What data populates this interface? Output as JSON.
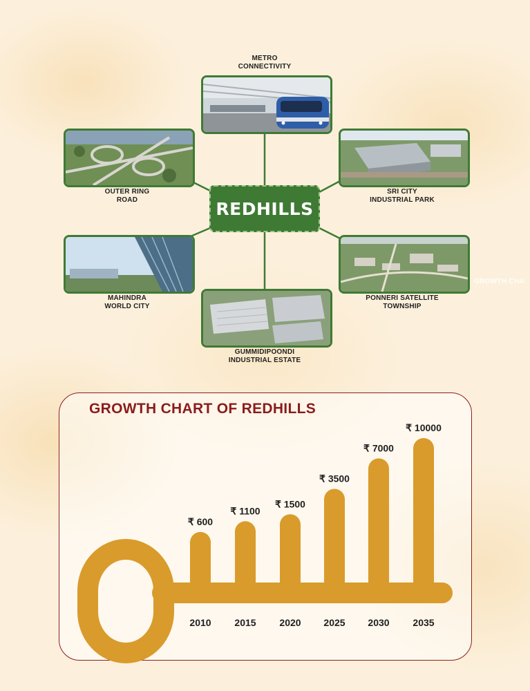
{
  "hub": {
    "label": "REDHILLS"
  },
  "nodes": {
    "metro": {
      "label_line1": "METRO",
      "label_line2": "CONNECTIVITY"
    },
    "orr": {
      "label_line1": "OUTER RING",
      "label_line2": "ROAD"
    },
    "sricity": {
      "label_line1": "SRI CITY",
      "label_line2": "INDUSTRIAL PARK"
    },
    "mahindra": {
      "label_line1": "MAHINDRA",
      "label_line2": "WORLD CITY"
    },
    "ponneri": {
      "label_line1": "PONNERI SATELLITE",
      "label_line2": "TOWNSHIP"
    },
    "gummidipoondi": {
      "label_line1": "GUMMIDIPOONDI",
      "label_line2": "INDUSTRIAL ESTATE"
    }
  },
  "side_clip_text": "GROWTH CHA",
  "colors": {
    "green": "#3f7a34",
    "gold": "#d99b2b",
    "maroon": "#8a1c1c"
  },
  "chart_data": {
    "type": "bar",
    "title": "GROWTH CHART OF REDHILLS",
    "currency_symbol": "₹",
    "categories": [
      "2010",
      "2015",
      "2020",
      "2025",
      "2030",
      "2035"
    ],
    "values": [
      600,
      1100,
      1500,
      3500,
      7000,
      10000
    ],
    "value_labels": [
      "₹ 600",
      "₹ 1100",
      "₹ 1500",
      "₹ 3500",
      "₹ 7000",
      "₹ 10000"
    ],
    "style": "key-shaped"
  }
}
